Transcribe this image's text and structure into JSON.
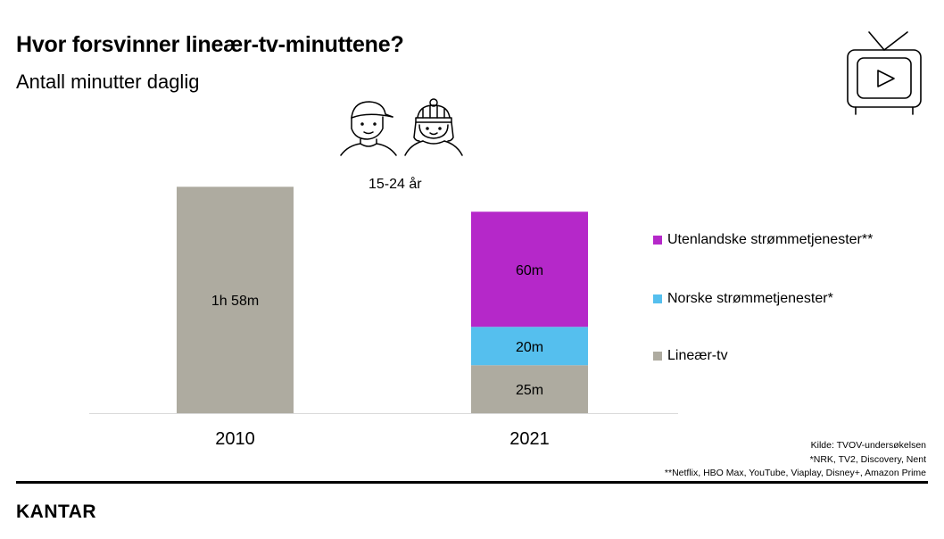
{
  "header": {
    "title": "Hvor forsvinner lineær-tv-minuttene?",
    "subtitle": "Antall minutter daglig"
  },
  "age_group": "15-24 år",
  "chart_data": {
    "type": "bar",
    "stacked": true,
    "categories": [
      "2010",
      "2021"
    ],
    "series": [
      {
        "name": "Lineær-tv",
        "values": [
          118,
          25
        ],
        "labels": [
          "1h 58m",
          "25m"
        ],
        "color": "#aeaba0"
      },
      {
        "name": "Norske strømmetjenester*",
        "values": [
          0,
          20
        ],
        "labels": [
          "",
          "20m"
        ],
        "color": "#55bfee"
      },
      {
        "name": "Utenlandske strømmetjenester**",
        "values": [
          0,
          60
        ],
        "labels": [
          "",
          "60m"
        ],
        "color": "#b528c9"
      }
    ],
    "legend_order": [
      2,
      1,
      0
    ],
    "ylim": [
      0,
      120
    ],
    "grid": false,
    "legend": "right"
  },
  "source": {
    "lines": [
      "Kilde: TVOV-undersøkelsen",
      "*NRK, TV2, Discovery, Nent",
      "**Netflix, HBO Max, YouTube, Viaplay, Disney+, Amazon Prime"
    ]
  },
  "brand": {
    "logo": "KANTAR"
  },
  "icons": {
    "tv": "tv-play-icon",
    "people": "young-people-icon"
  }
}
